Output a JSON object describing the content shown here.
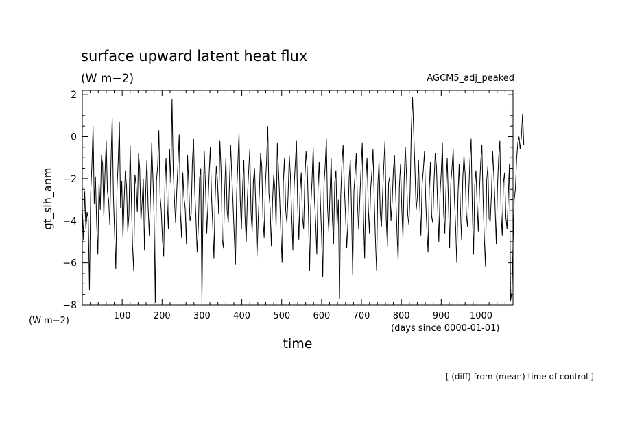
{
  "chart_data": {
    "type": "line",
    "title": "surface upward latent heat flux",
    "subtitle": "(W m−2)",
    "run_label": "AGCM5_adj_peaked",
    "ylabel": "gt_slh_anm",
    "yunits": "(W m−2)",
    "xlabel": "time",
    "xunits": "(days since 0000-01-01)",
    "footnote": "[ (diff) from (mean) time of control ]",
    "xlim": [
      0,
      1080
    ],
    "ylim": [
      -8,
      2.2
    ],
    "xticks": [
      100,
      200,
      300,
      400,
      500,
      600,
      700,
      800,
      900,
      1000
    ],
    "yticks": [
      -8,
      -6,
      -4,
      -2,
      0,
      2
    ],
    "grid": false,
    "series": [
      {
        "color": "#000000",
        "x_start": 0,
        "x_step": 3,
        "values": [
          -3.4,
          -4.9,
          -2.6,
          -4.4,
          -3.6,
          -3.9,
          -7.3,
          -2.7,
          -1.4,
          0.5,
          -3.2,
          -1.9,
          -4.1,
          -5.6,
          -2.2,
          -3.5,
          -0.9,
          -1.3,
          -3.8,
          -1.7,
          -0.2,
          -2.6,
          -3.0,
          -4.2,
          -1.1,
          0.9,
          -2.8,
          -4.6,
          -6.3,
          -2.5,
          -1.2,
          0.7,
          -3.4,
          -2.1,
          -4.8,
          -3.0,
          -1.6,
          -2.4,
          -4.5,
          -3.7,
          -0.4,
          -2.9,
          -5.2,
          -6.4,
          -1.8,
          -2.3,
          -3.6,
          -0.8,
          -1.5,
          -4.0,
          -3.1,
          -2.0,
          -5.4,
          -2.6,
          -1.1,
          -3.3,
          -4.7,
          -2.7,
          -0.3,
          -1.9,
          -3.8,
          -7.9,
          -2.1,
          -1.4,
          0.3,
          -2.8,
          -3.5,
          -4.9,
          -5.7,
          -2.4,
          -1.0,
          -3.2,
          -4.4,
          -0.6,
          -2.2,
          1.8,
          -1.6,
          -3.0,
          -4.1,
          -2.5,
          -1.3,
          0.1,
          -3.6,
          -4.8,
          -1.7,
          -2.9,
          -3.4,
          -5.1,
          -0.9,
          -2.3,
          -4.0,
          -3.7,
          -1.2,
          -0.1,
          -2.6,
          -3.9,
          -5.5,
          -4.3,
          -2.0,
          -1.5,
          -7.8,
          -3.1,
          -0.7,
          -2.4,
          -4.6,
          -3.3,
          -1.8,
          -0.5,
          -2.8,
          -4.2,
          -5.8,
          -3.0,
          -1.4,
          -2.1,
          -3.7,
          -0.2,
          -1.6,
          -4.9,
          -5.3,
          -2.5,
          -1.0,
          -3.5,
          -4.1,
          -2.2,
          -0.4,
          -1.9,
          -3.2,
          -4.7,
          -6.1,
          -2.7,
          -1.3,
          0.2,
          -3.0,
          -4.4,
          -2.4,
          -1.1,
          -3.8,
          -5.0,
          -2.9,
          -1.7,
          -0.6,
          -3.6,
          -4.5,
          -2.1,
          -1.5,
          -3.3,
          -5.7,
          -4.0,
          -2.6,
          -0.8,
          -1.4,
          -3.9,
          -4.8,
          -2.3,
          -1.2,
          0.5,
          -2.7,
          -3.4,
          -5.2,
          -3.1,
          -1.8,
          -2.5,
          -4.3,
          -0.3,
          -1.6,
          -3.0,
          -4.6,
          -6.0,
          -2.2,
          -1.0,
          -3.5,
          -4.1,
          -2.8,
          -0.9,
          -1.9,
          -3.7,
          -5.4,
          -2.4,
          -1.3,
          -0.2,
          -3.2,
          -4.9,
          -2.6,
          -1.7,
          -3.8,
          -4.4,
          -2.0,
          -0.7,
          -1.5,
          -3.6,
          -6.4,
          -3.3,
          -2.1,
          -0.5,
          -2.9,
          -4.0,
          -5.6,
          -2.5,
          -1.2,
          -3.1,
          -4.7,
          -6.7,
          -2.3,
          -1.4,
          -0.1,
          -3.4,
          -4.5,
          -2.7,
          -1.0,
          -3.9,
          -5.1,
          -2.2,
          -1.6,
          -4.2,
          -3.0,
          -7.7,
          -2.8,
          -1.3,
          -0.4,
          -2.4,
          -3.7,
          -5.3,
          -4.1,
          -2.0,
          -1.1,
          -3.5,
          -6.6,
          -2.6,
          -1.8,
          -0.8,
          -3.2,
          -4.4,
          -2.9,
          -1.5,
          -0.3,
          -3.8,
          -5.8,
          -2.1,
          -1.0,
          -3.3,
          -4.6,
          -2.5,
          -1.7,
          -0.6,
          -3.0,
          -4.9,
          -6.4,
          -2.3,
          -1.2,
          -3.6,
          -4.3,
          -2.7,
          -1.4,
          -0.2,
          -3.9,
          -5.2,
          -2.2,
          -1.9,
          -4.0,
          -3.1,
          -1.6,
          -0.9,
          -2.8,
          -4.5,
          -5.9,
          -2.4,
          -1.3,
          -3.4,
          -4.8,
          -2.0,
          -0.5,
          -1.8,
          -3.7,
          -4.2,
          -2.6,
          0.4,
          1.9,
          0.2,
          -1.5,
          -3.5,
          -2.9,
          -1.1,
          -3.2,
          -4.7,
          -2.3,
          -1.6,
          -0.7,
          -3.0,
          -4.4,
          -5.5,
          -2.5,
          -1.2,
          -3.8,
          -4.1,
          -2.1,
          -0.8,
          -1.4,
          -3.3,
          -5.0,
          -2.7,
          -1.7,
          -0.3,
          -3.6,
          -4.6,
          -2.4,
          -1.0,
          -3.1,
          -5.3,
          -2.2,
          -1.5,
          -0.6,
          -2.9,
          -4.2,
          -6.0,
          -2.8,
          -1.3,
          -3.4,
          -4.9,
          -2.0,
          -0.9,
          -1.8,
          -3.7,
          -4.3,
          -2.6,
          -1.1,
          -0.1,
          -3.5,
          -5.6,
          -2.3,
          -1.6,
          -3.2,
          -4.5,
          -2.5,
          -1.2,
          -0.4,
          -3.0,
          -4.8,
          -6.2,
          -2.1,
          -1.4,
          -3.9,
          -4.0,
          -2.7,
          -0.7,
          -1.9,
          -3.3,
          -5.1,
          -2.4,
          -1.0,
          -0.2,
          -3.6,
          -4.7,
          -2.2,
          -1.7,
          -3.8,
          -4.4,
          -2.9,
          -1.3,
          -7.8,
          -7.4,
          -5.2,
          -3.0,
          -2.5,
          -1.1,
          -0.3,
          0.0,
          -0.6,
          0.0,
          1.1,
          -0.4
        ]
      }
    ]
  }
}
